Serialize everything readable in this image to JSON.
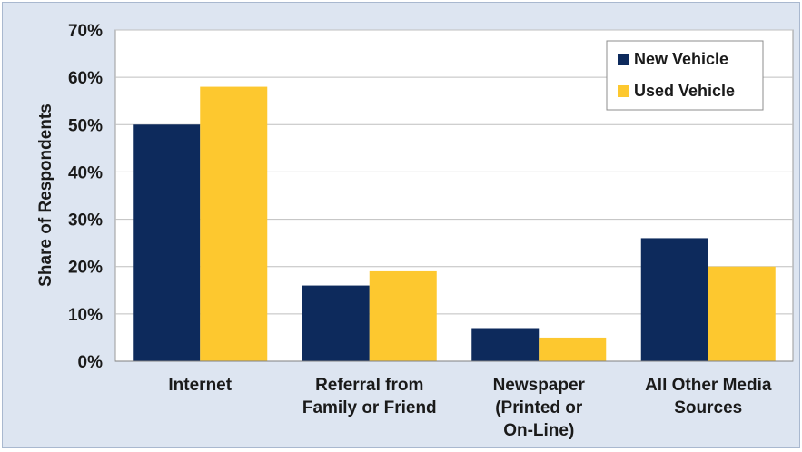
{
  "chart_data": {
    "type": "bar",
    "title": "",
    "xlabel": "",
    "ylabel": "Share of Respondents",
    "ylim": [
      0,
      0.7
    ],
    "yticks": [
      "0%",
      "10%",
      "20%",
      "30%",
      "40%",
      "50%",
      "60%",
      "70%"
    ],
    "categories": [
      [
        "Internet"
      ],
      [
        "Referral from",
        "Family or Friend"
      ],
      [
        "Newspaper",
        "(Printed or",
        "On-Line)"
      ],
      [
        "All Other Media",
        "Sources"
      ]
    ],
    "series": [
      {
        "name": "New Vehicle",
        "color": "#0d2a5c",
        "values": [
          0.5,
          0.16,
          0.07,
          0.26
        ]
      },
      {
        "name": "Used Vehicle",
        "color": "#fdc82f",
        "values": [
          0.58,
          0.19,
          0.05,
          0.2
        ]
      }
    ],
    "grid": true,
    "legend_position": "top-right"
  }
}
